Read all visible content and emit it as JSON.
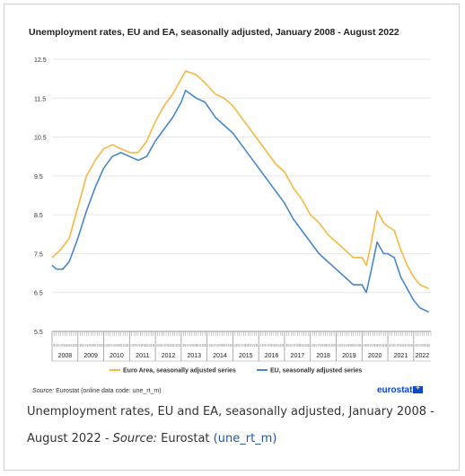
{
  "caption": {
    "text": "Unemployment rates, EU and EA, seasonally adjusted, January 2008 - August 2022 - ",
    "source_label": "Source:",
    "source_name": " Eurostat ",
    "link_text": "(une_rt_m)"
  },
  "source_note": {
    "label": "Source:",
    "text": " Eurostat (online data code: une_rt_m)"
  },
  "logo": {
    "text": "eurostat"
  },
  "colors": {
    "euro_area": "#f5b942",
    "eu": "#4a87c7",
    "grid": "#e6e6e6",
    "axis": "#999999"
  },
  "chart_data": {
    "type": "line",
    "title": "Unemployment rates, EU and EA, seasonally adjusted, January 2008 - August 2022",
    "xlabel": "",
    "ylabel": "",
    "ylim": [
      5.5,
      12.5
    ],
    "yticks": [
      "12.5",
      "11.5",
      "10.5",
      "9.5",
      "8.5",
      "7.5",
      "6.5",
      "5.5"
    ],
    "x_start": "2008-01",
    "x_end": "2022-08",
    "years": [
      "2008",
      "2009",
      "2010",
      "2011",
      "2012",
      "2013",
      "2014",
      "2015",
      "2016",
      "2017",
      "2018",
      "2019",
      "2020",
      "2021",
      "2022"
    ],
    "month_tick_text": "I II III IV V VI VII VIII IX X XI XII",
    "legend_position": "bottom",
    "grid": true,
    "series": [
      {
        "name": "Euro Area, seasonally adjusted series",
        "points": [
          [
            "2008-01",
            7.4
          ],
          [
            "2008-05",
            7.6
          ],
          [
            "2008-09",
            7.9
          ],
          [
            "2009-01",
            8.7
          ],
          [
            "2009-05",
            9.5
          ],
          [
            "2009-09",
            9.9
          ],
          [
            "2010-01",
            10.2
          ],
          [
            "2010-05",
            10.3
          ],
          [
            "2010-09",
            10.2
          ],
          [
            "2011-01",
            10.1
          ],
          [
            "2011-05",
            10.1
          ],
          [
            "2011-09",
            10.4
          ],
          [
            "2012-01",
            10.9
          ],
          [
            "2012-05",
            11.3
          ],
          [
            "2012-09",
            11.6
          ],
          [
            "2013-01",
            12.0
          ],
          [
            "2013-03",
            12.2
          ],
          [
            "2013-08",
            12.1
          ],
          [
            "2013-12",
            11.9
          ],
          [
            "2014-05",
            11.6
          ],
          [
            "2014-09",
            11.5
          ],
          [
            "2015-01",
            11.3
          ],
          [
            "2015-05",
            11.0
          ],
          [
            "2015-09",
            10.7
          ],
          [
            "2016-01",
            10.4
          ],
          [
            "2016-05",
            10.1
          ],
          [
            "2016-09",
            9.8
          ],
          [
            "2017-01",
            9.6
          ],
          [
            "2017-05",
            9.2
          ],
          [
            "2017-09",
            8.9
          ],
          [
            "2018-01",
            8.5
          ],
          [
            "2018-05",
            8.3
          ],
          [
            "2018-09",
            8.0
          ],
          [
            "2019-01",
            7.8
          ],
          [
            "2019-05",
            7.6
          ],
          [
            "2019-09",
            7.4
          ],
          [
            "2020-01",
            7.4
          ],
          [
            "2020-03",
            7.2
          ],
          [
            "2020-05",
            7.7
          ],
          [
            "2020-08",
            8.6
          ],
          [
            "2020-11",
            8.3
          ],
          [
            "2021-01",
            8.2
          ],
          [
            "2021-04",
            8.1
          ],
          [
            "2021-07",
            7.6
          ],
          [
            "2021-10",
            7.2
          ],
          [
            "2022-01",
            6.9
          ],
          [
            "2022-04",
            6.7
          ],
          [
            "2022-08",
            6.6
          ]
        ]
      },
      {
        "name": "EU, seasonally adjusted series",
        "points": [
          [
            "2008-01",
            7.2
          ],
          [
            "2008-03",
            7.1
          ],
          [
            "2008-06",
            7.1
          ],
          [
            "2008-09",
            7.3
          ],
          [
            "2009-01",
            7.9
          ],
          [
            "2009-05",
            8.6
          ],
          [
            "2009-09",
            9.2
          ],
          [
            "2010-01",
            9.7
          ],
          [
            "2010-05",
            10.0
          ],
          [
            "2010-09",
            10.1
          ],
          [
            "2011-01",
            10.0
          ],
          [
            "2011-05",
            9.9
          ],
          [
            "2011-09",
            10.0
          ],
          [
            "2012-01",
            10.4
          ],
          [
            "2012-05",
            10.7
          ],
          [
            "2012-09",
            11.0
          ],
          [
            "2013-01",
            11.4
          ],
          [
            "2013-03",
            11.7
          ],
          [
            "2013-08",
            11.5
          ],
          [
            "2013-12",
            11.4
          ],
          [
            "2014-05",
            11.0
          ],
          [
            "2014-09",
            10.8
          ],
          [
            "2015-01",
            10.6
          ],
          [
            "2015-05",
            10.3
          ],
          [
            "2015-09",
            10.0
          ],
          [
            "2016-01",
            9.7
          ],
          [
            "2016-05",
            9.4
          ],
          [
            "2016-09",
            9.1
          ],
          [
            "2017-01",
            8.8
          ],
          [
            "2017-05",
            8.4
          ],
          [
            "2017-09",
            8.1
          ],
          [
            "2018-01",
            7.8
          ],
          [
            "2018-05",
            7.5
          ],
          [
            "2018-09",
            7.3
          ],
          [
            "2019-01",
            7.1
          ],
          [
            "2019-05",
            6.9
          ],
          [
            "2019-09",
            6.7
          ],
          [
            "2020-01",
            6.7
          ],
          [
            "2020-03",
            6.5
          ],
          [
            "2020-05",
            7.0
          ],
          [
            "2020-08",
            7.8
          ],
          [
            "2020-11",
            7.5
          ],
          [
            "2021-01",
            7.5
          ],
          [
            "2021-04",
            7.4
          ],
          [
            "2021-07",
            6.9
          ],
          [
            "2021-10",
            6.6
          ],
          [
            "2022-01",
            6.3
          ],
          [
            "2022-04",
            6.1
          ],
          [
            "2022-08",
            6.0
          ]
        ]
      }
    ]
  }
}
